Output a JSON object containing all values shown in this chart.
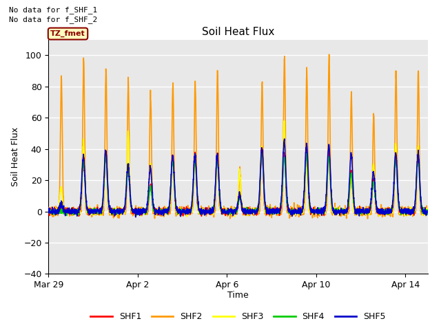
{
  "title": "Soil Heat Flux",
  "ylabel": "Soil Heat Flux",
  "xlabel": "Time",
  "ylim": [
    -40,
    110
  ],
  "yticks": [
    -40,
    -20,
    0,
    20,
    40,
    60,
    80,
    100
  ],
  "colors": {
    "SHF1": "#ff0000",
    "SHF2": "#ff9900",
    "SHF3": "#ffff00",
    "SHF4": "#00cc00",
    "SHF5": "#0000cc"
  },
  "line_width": 1.2,
  "background_color": "#ffffff",
  "plot_bg_color": "#e8e8e8",
  "grid_color": "#ffffff",
  "annotation_text1": "No data for f_SHF_1",
  "annotation_text2": "No data for f_SHF_2",
  "tz_label": "TZ_fmet",
  "n_days": 17,
  "points_per_day": 144,
  "xtick_labels": [
    "Mar 29",
    "Apr 2",
    "Apr 6",
    "Apr 10",
    "Apr 14"
  ],
  "xtick_days": [
    0,
    4,
    8,
    12,
    16
  ]
}
